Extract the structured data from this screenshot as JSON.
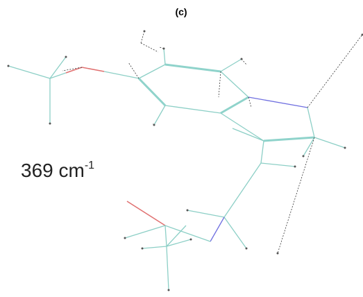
{
  "panel_label": "(c)",
  "frequency": {
    "text": "369 cm",
    "superscript": "-1"
  }
}
